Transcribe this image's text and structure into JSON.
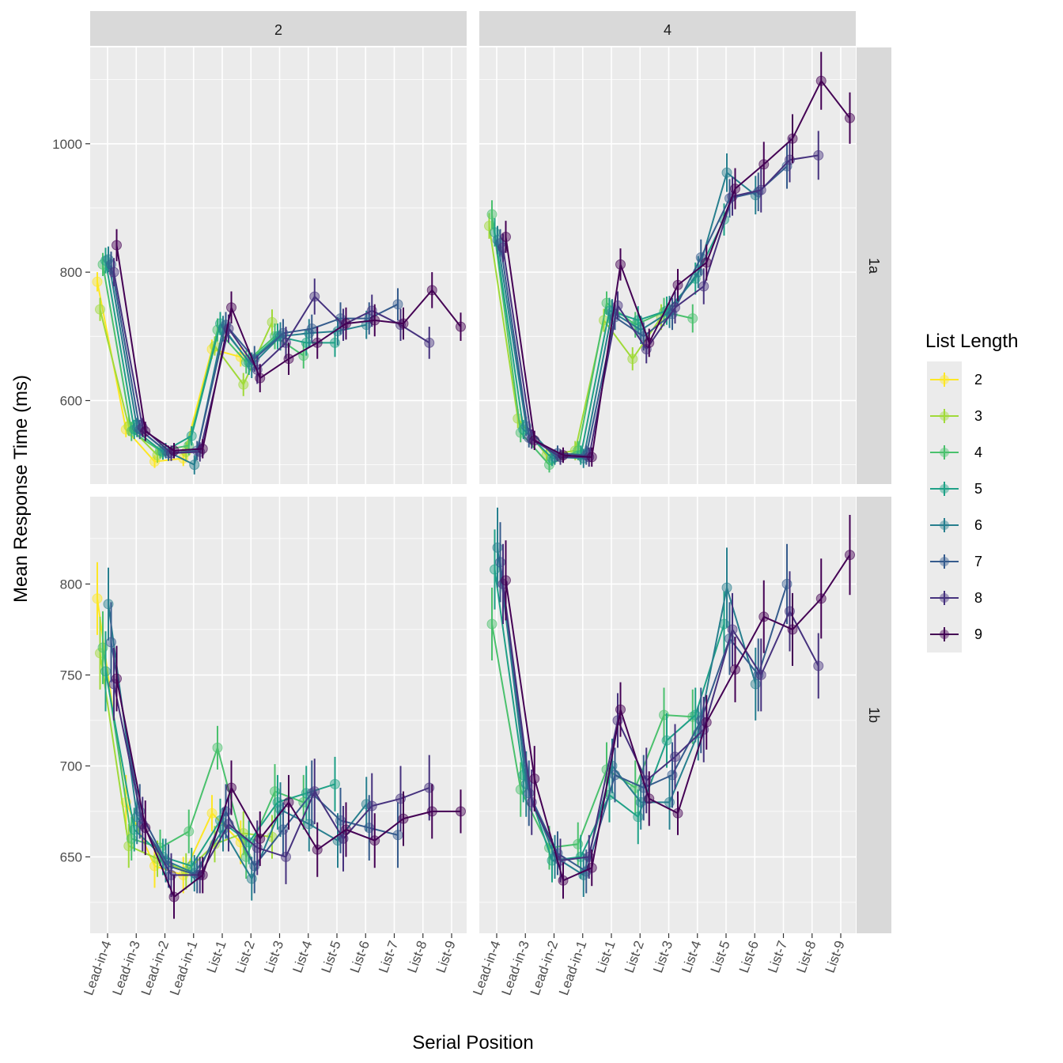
{
  "chart_data": {
    "type": "line",
    "xlabel": "Serial Position",
    "ylabel": "Mean Response Time (ms)",
    "legend_title": "List Length",
    "legend_position": "right",
    "categories": [
      "Lead-in-4",
      "Lead-in-3",
      "Lead-in-2",
      "Lead-in-1",
      "List-1",
      "List-2",
      "List-3",
      "List-4",
      "List-5",
      "List-6",
      "List-7",
      "List-8",
      "List-9"
    ],
    "column_facets": [
      "2",
      "4"
    ],
    "row_facets": [
      "1a",
      "1b"
    ],
    "series_names": [
      "2",
      "3",
      "4",
      "5",
      "6",
      "7",
      "8",
      "9"
    ],
    "series_colors": [
      "#FDE725",
      "#A0DA39",
      "#4AC16D",
      "#1FA187",
      "#277F8E",
      "#365C8D",
      "#46327E",
      "#440154"
    ],
    "row_axes": [
      {
        "ylim": [
          470,
          1150
        ],
        "ticks": [
          600,
          800,
          1000
        ],
        "tick_labels": [
          "600",
          "800",
          "1000"
        ],
        "minor": [
          500,
          700,
          900,
          1100
        ]
      },
      {
        "ylim": [
          608,
          848
        ],
        "ticks": [
          650,
          700,
          750,
          800
        ],
        "tick_labels": [
          "650",
          "700",
          "750",
          "800"
        ],
        "minor": [
          625,
          675,
          725,
          775,
          825
        ]
      }
    ],
    "panels": [
      {
        "col": "2",
        "row": "1a",
        "series": [
          {
            "name": "2",
            "values": [
              785,
              555,
              505,
              510,
              680,
              668
            ],
            "errors": [
              15,
              12,
              10,
              12,
              15,
              15
            ]
          },
          {
            "name": "3",
            "values": [
              742,
              560,
              515,
              520,
              685,
              625,
              722
            ],
            "errors": [
              18,
              15,
              12,
              15,
              15,
              18,
              20
            ]
          },
          {
            "name": "4",
            "values": [
              812,
              552,
              522,
              530,
              710,
              660,
              700,
              670
            ],
            "errors": [
              18,
              15,
              12,
              15,
              18,
              18,
              20,
              20
            ]
          },
          {
            "name": "5",
            "values": [
              818,
              555,
              520,
              545,
              720,
              660,
              700,
              690,
              690
            ],
            "errors": [
              20,
              15,
              12,
              15,
              18,
              20,
              20,
              20,
              22
            ]
          },
          {
            "name": "6",
            "values": [
              820,
              558,
              522,
              500,
              712,
              655,
              700,
              705,
              708,
              718
            ],
            "errors": [
              20,
              15,
              12,
              15,
              20,
              20,
              22,
              22,
              22,
              22
            ]
          },
          {
            "name": "7",
            "values": [
              812,
              555,
              518,
              522,
              718,
              665,
              705,
              712,
              728,
              728,
              750
            ],
            "errors": [
              20,
              15,
              12,
              15,
              20,
              20,
              22,
              22,
              25,
              25,
              25
            ]
          },
          {
            "name": "8",
            "values": [
              800,
              558,
              518,
              520,
              712,
              648,
              690,
              762,
              718,
              740,
              718,
              690
            ],
            "errors": [
              22,
              15,
              12,
              15,
              22,
              22,
              25,
              28,
              25,
              25,
              25,
              25
            ]
          },
          {
            "name": "9",
            "values": [
              842,
              552,
              522,
              525,
              745,
              635,
              665,
              690,
              720,
              725,
              720,
              772,
              715
            ],
            "errors": [
              25,
              15,
              12,
              15,
              25,
              22,
              25,
              25,
              25,
              25,
              25,
              28,
              22
            ]
          }
        ]
      },
      {
        "col": "4",
        "row": "1a",
        "series": [
          {
            "name": "3",
            "values": [
              872,
              572,
              515,
              522,
              725,
              665,
              730
            ],
            "errors": [
              20,
              15,
              12,
              15,
              18,
              18,
              20
            ]
          },
          {
            "name": "4",
            "values": [
              890,
              550,
              500,
              522,
              752,
              718,
              738,
              728
            ],
            "errors": [
              22,
              15,
              12,
              15,
              18,
              20,
              22,
              22
            ]
          },
          {
            "name": "5",
            "values": [
              862,
              555,
              510,
              515,
              740,
              725,
              740,
              790,
              882
            ],
            "errors": [
              22,
              15,
              12,
              15,
              20,
              22,
              22,
              25,
              25
            ]
          },
          {
            "name": "6",
            "values": [
              850,
              560,
              512,
              510,
              738,
              710,
              738,
              800,
              955,
              920
            ],
            "errors": [
              22,
              15,
              12,
              15,
              20,
              22,
              25,
              25,
              30,
              30
            ]
          },
          {
            "name": "7",
            "values": [
              845,
              542,
              518,
              515,
              730,
              700,
              735,
              823,
              915,
              925,
              965
            ],
            "errors": [
              22,
              15,
              12,
              15,
              20,
              22,
              25,
              28,
              30,
              30,
              35
            ]
          },
          {
            "name": "8",
            "values": [
              838,
              540,
              512,
              512,
              748,
              680,
              745,
              778,
              918,
              928,
              975,
              982
            ],
            "errors": [
              22,
              15,
              12,
              15,
              22,
              22,
              25,
              28,
              30,
              35,
              35,
              38
            ]
          },
          {
            "name": "9",
            "values": [
              855,
              538,
              515,
              512,
              812,
              690,
              780,
              815,
              930,
              968,
              1008,
              1098,
              1040
            ],
            "errors": [
              25,
              15,
              12,
              15,
              25,
              22,
              25,
              28,
              32,
              35,
              38,
              45,
              40
            ]
          }
        ]
      },
      {
        "col": "2",
        "row": "1b",
        "series": [
          {
            "name": "2",
            "values": [
              792,
              680,
              645,
              640,
              674,
              658
            ],
            "errors": [
              20,
              15,
              12,
              10,
              10,
              12
            ]
          },
          {
            "name": "3",
            "values": [
              762,
              656,
              649,
              642,
              657,
              663,
              661
            ],
            "errors": [
              20,
              12,
              10,
              10,
              10,
              12,
              12
            ]
          },
          {
            "name": "4",
            "values": [
              765,
              660,
              655,
              664,
              710,
              650,
              686,
              680
            ],
            "errors": [
              20,
              12,
              10,
              12,
              12,
              12,
              15,
              15
            ]
          },
          {
            "name": "5",
            "values": [
              752,
              665,
              650,
              645,
              670,
              658,
              680,
              685,
              690
            ],
            "errors": [
              22,
              12,
              10,
              10,
              12,
              12,
              15,
              15,
              15
            ]
          },
          {
            "name": "6",
            "values": [
              789,
              672,
              648,
              641,
              665,
              638,
              676,
              668,
              659,
              679
            ],
            "errors": [
              20,
              15,
              12,
              10,
              12,
              12,
              15,
              15,
              15,
              15
            ]
          },
          {
            "name": "7",
            "values": [
              768,
              675,
              645,
              640,
              675,
              645,
              665,
              685,
              670,
              666,
              662
            ],
            "errors": [
              22,
              15,
              12,
              10,
              15,
              15,
              15,
              18,
              18,
              18,
              18
            ]
          },
          {
            "name": "8",
            "values": [
              745,
              668,
              640,
              640,
              668,
              655,
              650,
              686,
              660,
              678,
              682,
              688
            ],
            "errors": [
              20,
              15,
              12,
              10,
              15,
              15,
              15,
              18,
              18,
              18,
              18,
              18
            ]
          },
          {
            "name": "9",
            "values": [
              748,
              666,
              628,
              640,
              688,
              660,
              680,
              654,
              665,
              659,
              671,
              675,
              675
            ],
            "errors": [
              18,
              15,
              12,
              10,
              15,
              15,
              15,
              15,
              15,
              15,
              15,
              15,
              12
            ]
          }
        ]
      },
      {
        "col": "4",
        "row": "1b",
        "series": [
          {
            "name": "4",
            "values": [
              778,
              687,
              655,
              657,
              698,
              688,
              728,
              727
            ],
            "errors": [
              20,
              15,
              12,
              12,
              15,
              15,
              15,
              15
            ]
          },
          {
            "name": "5",
            "values": [
              808,
              695,
              648,
              650,
              684,
              672,
              714,
              728,
              778
            ],
            "errors": [
              22,
              15,
              12,
              12,
              15,
              15,
              15,
              15,
              18
            ]
          },
          {
            "name": "6",
            "values": [
              820,
              690,
              650,
              640,
              700,
              680,
              680,
              718,
              798,
              745
            ],
            "errors": [
              22,
              18,
              12,
              12,
              15,
              15,
              15,
              15,
              22,
              20
            ]
          },
          {
            "name": "7",
            "values": [
              812,
              685,
              652,
              642,
              695,
              688,
              695,
              725,
              770,
              750,
              800
            ],
            "errors": [
              22,
              18,
              12,
              12,
              15,
              18,
              18,
              18,
              20,
              20,
              22
            ]
          },
          {
            "name": "8",
            "values": [
              800,
              680,
              648,
              650,
              725,
              692,
              705,
              720,
              775,
              750,
              785,
              755
            ],
            "errors": [
              22,
              18,
              12,
              12,
              15,
              18,
              18,
              18,
              20,
              20,
              22,
              18
            ]
          },
          {
            "name": "9",
            "values": [
              802,
              693,
              637,
              644,
              731,
              682,
              674,
              724,
              753,
              782,
              775,
              792,
              816
            ],
            "errors": [
              22,
              18,
              10,
              10,
              15,
              15,
              12,
              15,
              18,
              20,
              20,
              22,
              22
            ]
          }
        ]
      }
    ]
  }
}
